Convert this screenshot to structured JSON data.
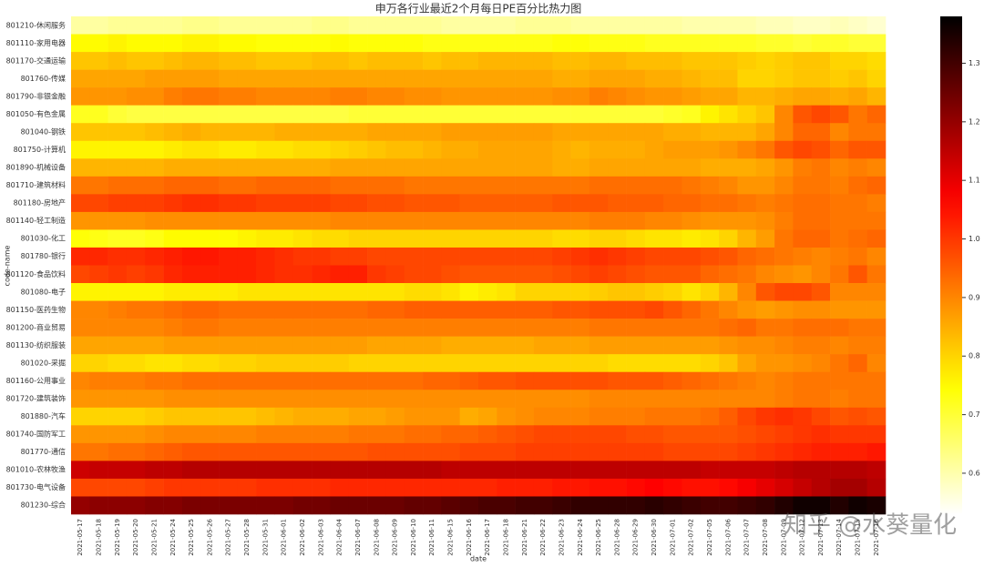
{
  "chart_data": {
    "type": "heatmap",
    "title": "申万各行业最近2个月每日PE百分比热力图",
    "xlabel": "date",
    "ylabel": "code-name",
    "watermark": "知乎 @水葵量化",
    "colormap": "hot_r",
    "x": [
      "2021-05-17",
      "2021-05-18",
      "2021-05-19",
      "2021-05-20",
      "2021-05-21",
      "2021-05-24",
      "2021-05-25",
      "2021-05-26",
      "2021-05-27",
      "2021-05-28",
      "2021-05-31",
      "2021-06-01",
      "2021-06-02",
      "2021-06-03",
      "2021-06-04",
      "2021-06-07",
      "2021-06-08",
      "2021-06-09",
      "2021-06-10",
      "2021-06-11",
      "2021-06-15",
      "2021-06-16",
      "2021-06-17",
      "2021-06-18",
      "2021-06-21",
      "2021-06-22",
      "2021-06-23",
      "2021-06-24",
      "2021-06-25",
      "2021-06-28",
      "2021-06-29",
      "2021-06-30",
      "2021-07-01",
      "2021-07-02",
      "2021-07-05",
      "2021-07-06",
      "2021-07-07",
      "2021-07-08",
      "2021-07-09",
      "2021-07-12",
      "2021-07-13",
      "2021-07-14",
      "2021-07-15",
      "2021-07-16"
    ],
    "categories": [
      "801210-休闲服务",
      "801110-家用电器",
      "801170-交通运输",
      "801760-传媒",
      "801790-非银金融",
      "801050-有色金属",
      "801040-钢铁",
      "801750-计算机",
      "801890-机械设备",
      "801710-建筑材料",
      "801180-房地产",
      "801140-轻工制造",
      "801030-化工",
      "801780-银行",
      "801120-食品饮料",
      "801080-电子",
      "801150-医药生物",
      "801200-商业贸易",
      "801130-纺织服装",
      "801020-采掘",
      "801160-公用事业",
      "801720-建筑装饰",
      "801880-汽车",
      "801740-国防军工",
      "801770-通信",
      "801010-农林牧渔",
      "801730-电气设备",
      "801230-综合"
    ],
    "values": [
      [
        0.61,
        0.61,
        0.62,
        0.62,
        0.62,
        0.62,
        0.63,
        0.63,
        0.62,
        0.62,
        0.62,
        0.62,
        0.62,
        0.63,
        0.63,
        0.62,
        0.62,
        0.62,
        0.62,
        0.62,
        0.61,
        0.61,
        0.61,
        0.61,
        0.62,
        0.62,
        0.62,
        0.61,
        0.61,
        0.61,
        0.61,
        0.61,
        0.61,
        0.6,
        0.6,
        0.6,
        0.6,
        0.59,
        0.59,
        0.58,
        0.58,
        0.59,
        0.58,
        0.57
      ],
      [
        0.75,
        0.75,
        0.76,
        0.75,
        0.75,
        0.75,
        0.76,
        0.76,
        0.75,
        0.75,
        0.74,
        0.74,
        0.74,
        0.74,
        0.75,
        0.74,
        0.74,
        0.74,
        0.74,
        0.73,
        0.73,
        0.73,
        0.73,
        0.73,
        0.73,
        0.73,
        0.74,
        0.74,
        0.73,
        0.73,
        0.73,
        0.72,
        0.72,
        0.72,
        0.72,
        0.72,
        0.72,
        0.71,
        0.71,
        0.7,
        0.71,
        0.71,
        0.7,
        0.7
      ],
      [
        0.82,
        0.82,
        0.83,
        0.82,
        0.82,
        0.83,
        0.84,
        0.84,
        0.83,
        0.83,
        0.82,
        0.82,
        0.82,
        0.83,
        0.83,
        0.82,
        0.83,
        0.83,
        0.83,
        0.82,
        0.83,
        0.83,
        0.84,
        0.84,
        0.84,
        0.84,
        0.83,
        0.83,
        0.84,
        0.84,
        0.83,
        0.83,
        0.83,
        0.82,
        0.82,
        0.82,
        0.81,
        0.8,
        0.81,
        0.82,
        0.82,
        0.8,
        0.8,
        0.79
      ],
      [
        0.86,
        0.86,
        0.86,
        0.86,
        0.87,
        0.87,
        0.87,
        0.87,
        0.86,
        0.86,
        0.86,
        0.86,
        0.86,
        0.86,
        0.86,
        0.86,
        0.86,
        0.86,
        0.86,
        0.86,
        0.86,
        0.86,
        0.86,
        0.86,
        0.86,
        0.86,
        0.85,
        0.85,
        0.86,
        0.86,
        0.86,
        0.85,
        0.85,
        0.84,
        0.83,
        0.83,
        0.8,
        0.8,
        0.81,
        0.82,
        0.82,
        0.81,
        0.82,
        0.8
      ],
      [
        0.88,
        0.88,
        0.88,
        0.89,
        0.89,
        0.91,
        0.92,
        0.92,
        0.91,
        0.91,
        0.9,
        0.9,
        0.9,
        0.9,
        0.91,
        0.91,
        0.9,
        0.9,
        0.89,
        0.89,
        0.88,
        0.88,
        0.88,
        0.88,
        0.88,
        0.88,
        0.89,
        0.89,
        0.91,
        0.9,
        0.89,
        0.88,
        0.88,
        0.87,
        0.86,
        0.86,
        0.84,
        0.84,
        0.85,
        0.86,
        0.86,
        0.85,
        0.86,
        0.84
      ],
      [
        0.72,
        0.72,
        0.7,
        0.69,
        0.69,
        0.69,
        0.69,
        0.69,
        0.69,
        0.69,
        0.69,
        0.69,
        0.69,
        0.69,
        0.69,
        0.7,
        0.7,
        0.7,
        0.7,
        0.7,
        0.7,
        0.7,
        0.7,
        0.7,
        0.7,
        0.7,
        0.7,
        0.7,
        0.7,
        0.7,
        0.7,
        0.7,
        0.71,
        0.72,
        0.76,
        0.78,
        0.8,
        0.82,
        0.9,
        0.96,
        0.98,
        0.96,
        0.92,
        0.94
      ],
      [
        0.82,
        0.82,
        0.82,
        0.82,
        0.83,
        0.84,
        0.85,
        0.84,
        0.84,
        0.84,
        0.84,
        0.85,
        0.85,
        0.85,
        0.85,
        0.85,
        0.86,
        0.86,
        0.86,
        0.86,
        0.87,
        0.87,
        0.87,
        0.87,
        0.87,
        0.87,
        0.86,
        0.86,
        0.86,
        0.86,
        0.86,
        0.86,
        0.85,
        0.85,
        0.84,
        0.84,
        0.84,
        0.86,
        0.9,
        0.94,
        0.94,
        0.9,
        0.92,
        0.92
      ],
      [
        0.76,
        0.76,
        0.76,
        0.76,
        0.76,
        0.77,
        0.78,
        0.78,
        0.77,
        0.77,
        0.78,
        0.78,
        0.79,
        0.79,
        0.8,
        0.81,
        0.82,
        0.83,
        0.83,
        0.84,
        0.85,
        0.85,
        0.86,
        0.86,
        0.86,
        0.86,
        0.85,
        0.84,
        0.85,
        0.85,
        0.85,
        0.86,
        0.87,
        0.87,
        0.87,
        0.88,
        0.9,
        0.92,
        0.96,
        0.98,
        0.97,
        0.94,
        0.96,
        0.96
      ],
      [
        0.84,
        0.84,
        0.84,
        0.84,
        0.84,
        0.85,
        0.85,
        0.85,
        0.85,
        0.85,
        0.85,
        0.85,
        0.85,
        0.85,
        0.86,
        0.86,
        0.86,
        0.86,
        0.86,
        0.86,
        0.86,
        0.86,
        0.86,
        0.86,
        0.86,
        0.86,
        0.85,
        0.85,
        0.86,
        0.86,
        0.86,
        0.86,
        0.86,
        0.86,
        0.85,
        0.85,
        0.85,
        0.86,
        0.88,
        0.91,
        0.92,
        0.9,
        0.91,
        0.9
      ],
      [
        0.92,
        0.92,
        0.93,
        0.93,
        0.93,
        0.94,
        0.94,
        0.94,
        0.93,
        0.93,
        0.94,
        0.94,
        0.94,
        0.94,
        0.93,
        0.93,
        0.93,
        0.93,
        0.92,
        0.92,
        0.92,
        0.92,
        0.92,
        0.92,
        0.92,
        0.92,
        0.92,
        0.92,
        0.93,
        0.93,
        0.93,
        0.93,
        0.93,
        0.92,
        0.91,
        0.9,
        0.88,
        0.88,
        0.9,
        0.92,
        0.92,
        0.91,
        0.93,
        0.94
      ],
      [
        0.98,
        0.98,
        0.99,
        0.99,
        0.99,
        1.0,
        1.01,
        1.01,
        1.0,
        1.0,
        0.99,
        0.99,
        0.99,
        0.99,
        0.98,
        0.98,
        0.97,
        0.97,
        0.96,
        0.96,
        0.96,
        0.95,
        0.95,
        0.95,
        0.95,
        0.95,
        0.96,
        0.96,
        0.96,
        0.95,
        0.95,
        0.95,
        0.94,
        0.94,
        0.93,
        0.93,
        0.92,
        0.91,
        0.92,
        0.93,
        0.93,
        0.92,
        0.92,
        0.91
      ],
      [
        0.88,
        0.88,
        0.88,
        0.88,
        0.89,
        0.89,
        0.89,
        0.89,
        0.89,
        0.89,
        0.89,
        0.89,
        0.89,
        0.89,
        0.9,
        0.9,
        0.9,
        0.9,
        0.9,
        0.9,
        0.9,
        0.9,
        0.9,
        0.9,
        0.9,
        0.9,
        0.9,
        0.9,
        0.91,
        0.91,
        0.91,
        0.9,
        0.9,
        0.89,
        0.88,
        0.88,
        0.88,
        0.89,
        0.91,
        0.93,
        0.93,
        0.92,
        0.92,
        0.92
      ],
      [
        0.74,
        0.73,
        0.72,
        0.72,
        0.73,
        0.75,
        0.75,
        0.75,
        0.75,
        0.76,
        0.77,
        0.77,
        0.78,
        0.79,
        0.79,
        0.8,
        0.8,
        0.8,
        0.8,
        0.8,
        0.8,
        0.8,
        0.8,
        0.8,
        0.8,
        0.8,
        0.79,
        0.79,
        0.8,
        0.8,
        0.79,
        0.78,
        0.78,
        0.77,
        0.78,
        0.8,
        0.84,
        0.87,
        0.92,
        0.94,
        0.94,
        0.92,
        0.93,
        0.94
      ],
      [
        1.02,
        1.02,
        1.01,
        1.01,
        1.02,
        1.03,
        1.04,
        1.04,
        1.03,
        1.03,
        1.02,
        1.01,
        1.0,
        1.0,
        0.99,
        0.99,
        0.98,
        0.98,
        0.98,
        0.98,
        0.98,
        0.98,
        0.98,
        0.98,
        0.98,
        0.98,
        0.99,
        1.0,
        1.01,
        1.0,
        0.99,
        0.98,
        0.98,
        0.98,
        0.97,
        0.96,
        0.94,
        0.93,
        0.92,
        0.91,
        0.9,
        0.91,
        0.92,
        0.9
      ],
      [
        0.98,
        0.99,
        1.0,
        0.99,
        1.0,
        1.02,
        1.03,
        1.03,
        1.03,
        1.03,
        1.02,
        1.01,
        1.01,
        1.02,
        1.03,
        1.03,
        1.0,
        0.99,
        0.98,
        0.98,
        0.97,
        0.96,
        0.96,
        0.96,
        0.96,
        0.96,
        0.97,
        0.98,
        0.99,
        0.98,
        0.97,
        0.96,
        0.96,
        0.96,
        0.94,
        0.93,
        0.92,
        0.9,
        0.89,
        0.88,
        0.9,
        0.92,
        0.96,
        0.92
      ],
      [
        0.76,
        0.76,
        0.76,
        0.76,
        0.76,
        0.77,
        0.77,
        0.77,
        0.77,
        0.78,
        0.78,
        0.78,
        0.78,
        0.78,
        0.78,
        0.78,
        0.78,
        0.78,
        0.79,
        0.79,
        0.78,
        0.76,
        0.77,
        0.78,
        0.8,
        0.8,
        0.8,
        0.8,
        0.81,
        0.82,
        0.82,
        0.81,
        0.8,
        0.78,
        0.8,
        0.84,
        0.9,
        0.96,
        0.98,
        0.98,
        0.96,
        0.9,
        0.9,
        0.9
      ],
      [
        0.9,
        0.9,
        0.91,
        0.92,
        0.92,
        0.93,
        0.94,
        0.94,
        0.93,
        0.93,
        0.93,
        0.93,
        0.93,
        0.93,
        0.93,
        0.93,
        0.94,
        0.94,
        0.95,
        0.95,
        0.95,
        0.95,
        0.95,
        0.95,
        0.95,
        0.95,
        0.96,
        0.96,
        0.97,
        0.97,
        0.97,
        0.98,
        0.96,
        0.94,
        0.92,
        0.9,
        0.88,
        0.87,
        0.88,
        0.89,
        0.89,
        0.88,
        0.88,
        0.88
      ],
      [
        0.9,
        0.9,
        0.9,
        0.9,
        0.9,
        0.91,
        0.92,
        0.92,
        0.91,
        0.91,
        0.91,
        0.91,
        0.91,
        0.91,
        0.91,
        0.91,
        0.91,
        0.91,
        0.91,
        0.91,
        0.91,
        0.91,
        0.91,
        0.91,
        0.91,
        0.91,
        0.91,
        0.91,
        0.92,
        0.92,
        0.92,
        0.92,
        0.92,
        0.92,
        0.92,
        0.93,
        0.94,
        0.92,
        0.92,
        0.93,
        0.93,
        0.93,
        0.92,
        0.92
      ],
      [
        0.86,
        0.86,
        0.86,
        0.86,
        0.86,
        0.87,
        0.87,
        0.87,
        0.87,
        0.87,
        0.87,
        0.87,
        0.87,
        0.87,
        0.87,
        0.87,
        0.86,
        0.86,
        0.86,
        0.86,
        0.85,
        0.85,
        0.85,
        0.85,
        0.85,
        0.86,
        0.86,
        0.86,
        0.87,
        0.87,
        0.87,
        0.87,
        0.87,
        0.87,
        0.87,
        0.88,
        0.89,
        0.89,
        0.9,
        0.91,
        0.91,
        0.9,
        0.91,
        0.91
      ],
      [
        0.8,
        0.8,
        0.79,
        0.79,
        0.78,
        0.78,
        0.79,
        0.79,
        0.8,
        0.8,
        0.81,
        0.81,
        0.81,
        0.81,
        0.81,
        0.8,
        0.8,
        0.8,
        0.8,
        0.8,
        0.8,
        0.8,
        0.8,
        0.8,
        0.8,
        0.8,
        0.8,
        0.8,
        0.8,
        0.79,
        0.79,
        0.79,
        0.79,
        0.79,
        0.8,
        0.82,
        0.86,
        0.88,
        0.88,
        0.89,
        0.9,
        0.92,
        0.94,
        0.9
      ],
      [
        0.9,
        0.91,
        0.91,
        0.91,
        0.92,
        0.92,
        0.93,
        0.93,
        0.93,
        0.93,
        0.93,
        0.93,
        0.93,
        0.93,
        0.93,
        0.93,
        0.93,
        0.93,
        0.93,
        0.94,
        0.94,
        0.95,
        0.96,
        0.96,
        0.97,
        0.97,
        0.97,
        0.97,
        0.97,
        0.96,
        0.96,
        0.96,
        0.95,
        0.94,
        0.93,
        0.92,
        0.91,
        0.9,
        0.91,
        0.92,
        0.92,
        0.92,
        0.92,
        0.92
      ],
      [
        0.88,
        0.88,
        0.88,
        0.88,
        0.88,
        0.89,
        0.89,
        0.89,
        0.89,
        0.89,
        0.89,
        0.89,
        0.89,
        0.89,
        0.89,
        0.89,
        0.89,
        0.89,
        0.89,
        0.89,
        0.89,
        0.89,
        0.89,
        0.89,
        0.89,
        0.89,
        0.89,
        0.89,
        0.9,
        0.9,
        0.9,
        0.9,
        0.9,
        0.9,
        0.9,
        0.9,
        0.9,
        0.9,
        0.91,
        0.92,
        0.92,
        0.91,
        0.92,
        0.92
      ],
      [
        0.8,
        0.8,
        0.8,
        0.8,
        0.81,
        0.82,
        0.82,
        0.82,
        0.82,
        0.82,
        0.83,
        0.84,
        0.85,
        0.85,
        0.85,
        0.86,
        0.86,
        0.87,
        0.88,
        0.88,
        0.88,
        0.85,
        0.86,
        0.88,
        0.89,
        0.9,
        0.9,
        0.9,
        0.91,
        0.91,
        0.91,
        0.92,
        0.92,
        0.92,
        0.93,
        0.95,
        0.98,
        1.0,
        1.01,
        1.0,
        0.98,
        0.96,
        0.97,
        0.96
      ],
      [
        0.88,
        0.88,
        0.88,
        0.88,
        0.89,
        0.9,
        0.9,
        0.9,
        0.9,
        0.9,
        0.91,
        0.91,
        0.91,
        0.91,
        0.91,
        0.92,
        0.92,
        0.92,
        0.93,
        0.93,
        0.94,
        0.94,
        0.95,
        0.96,
        0.97,
        0.98,
        0.98,
        0.98,
        0.98,
        0.98,
        0.97,
        0.97,
        0.96,
        0.96,
        0.96,
        0.96,
        0.97,
        0.98,
        0.99,
        1.0,
        1.01,
        1.0,
        1.0,
        1.0
      ],
      [
        0.92,
        0.92,
        0.93,
        0.93,
        0.94,
        0.95,
        0.96,
        0.96,
        0.96,
        0.96,
        0.96,
        0.96,
        0.96,
        0.96,
        0.96,
        0.96,
        0.97,
        0.97,
        0.97,
        0.97,
        0.97,
        0.98,
        0.98,
        0.98,
        0.99,
        0.99,
        0.99,
        0.99,
        0.99,
        0.99,
        0.99,
        0.99,
        0.98,
        0.98,
        0.98,
        0.98,
        0.99,
        1.0,
        1.01,
        1.02,
        1.03,
        1.03,
        1.03,
        1.04
      ],
      [
        1.13,
        1.14,
        1.14,
        1.14,
        1.15,
        1.15,
        1.16,
        1.16,
        1.16,
        1.16,
        1.16,
        1.16,
        1.16,
        1.16,
        1.16,
        1.16,
        1.16,
        1.16,
        1.16,
        1.16,
        1.15,
        1.15,
        1.15,
        1.15,
        1.15,
        1.15,
        1.15,
        1.15,
        1.15,
        1.15,
        1.15,
        1.15,
        1.15,
        1.15,
        1.14,
        1.14,
        1.14,
        1.14,
        1.15,
        1.16,
        1.16,
        1.16,
        1.16,
        1.15
      ],
      [
        0.98,
        0.98,
        0.98,
        0.98,
        0.99,
        1.0,
        1.0,
        1.0,
        1.0,
        1.0,
        1.01,
        1.01,
        1.01,
        1.01,
        1.02,
        1.02,
        1.02,
        1.02,
        1.02,
        1.02,
        1.02,
        1.02,
        1.02,
        1.03,
        1.03,
        1.03,
        1.04,
        1.04,
        1.05,
        1.05,
        1.06,
        1.07,
        1.06,
        1.05,
        1.05,
        1.06,
        1.08,
        1.1,
        1.12,
        1.14,
        1.16,
        1.18,
        1.18,
        1.16
      ],
      [
        1.2,
        1.21,
        1.21,
        1.21,
        1.22,
        1.22,
        1.23,
        1.23,
        1.23,
        1.23,
        1.23,
        1.23,
        1.24,
        1.24,
        1.25,
        1.25,
        1.25,
        1.25,
        1.26,
        1.26,
        1.27,
        1.28,
        1.29,
        1.29,
        1.3,
        1.3,
        1.31,
        1.32,
        1.32,
        1.32,
        1.32,
        1.33,
        1.32,
        1.31,
        1.3,
        1.3,
        1.31,
        1.32,
        1.34,
        1.36,
        1.36,
        1.34,
        1.36,
        1.35
      ]
    ],
    "vlim": [
      0.53,
      1.38
    ],
    "cticks": [
      0.6,
      0.7,
      0.8,
      0.9,
      {
        "value": 1,
        "label": "1.0"
      },
      1.1,
      1.2,
      1.3
    ]
  }
}
